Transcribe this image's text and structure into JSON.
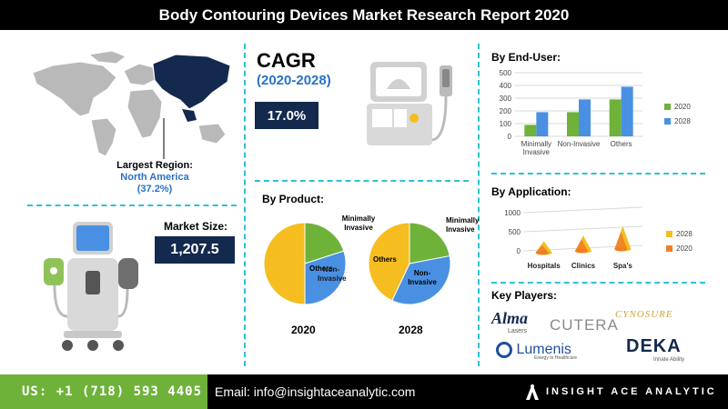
{
  "title": "Body Contouring Devices Market Research Report 2020",
  "region": {
    "label": "Largest Region:",
    "name": "North America",
    "share": "(37.2%)"
  },
  "market_size": {
    "label": "Market Size:",
    "value": "1,207.5"
  },
  "cagr": {
    "label": "CAGR",
    "period": "(2020-2028)",
    "value": "17.0%"
  },
  "product_section": {
    "heading": "By Product:",
    "labels": {
      "minimally_invasive_2020": "Minimally Invasive",
      "minimally_invasive_2028": "Minimally Invasive",
      "non_invasive": "Non-Invasive",
      "others": "Others"
    }
  },
  "end_user_section": {
    "heading": "By End-User:"
  },
  "application_section": {
    "heading": "By Application:"
  },
  "key_players": {
    "heading": "Key Players:",
    "alma": "Alma",
    "alma_sub": "Lasers",
    "cutera": "CUTERA",
    "cynosure": "CYNOSURE",
    "lumenis": "Lumenis",
    "lumenis_sub": "Energy to Healthcare",
    "deka": "DEKA",
    "deka_sub": "Innate Ability"
  },
  "footer": {
    "phone": "US: +1 (718) 593 4405",
    "email": "Email: info@insightaceanalytic.com",
    "brand": "INSIGHT ACE ANALYTIC"
  },
  "colors": {
    "navy": "#13294e",
    "blue": "#4a90e2",
    "green": "#6fb23a",
    "gold": "#f5bd1f",
    "orange": "#ef7f27",
    "teal_separator": "#2cc3d2"
  },
  "chart_data": [
    {
      "type": "bar",
      "title": "By End-User:",
      "categories": [
        "Minimally Invasive",
        "Non-Invasive",
        "Others"
      ],
      "series": [
        {
          "name": "2020",
          "values": [
            90,
            190,
            290
          ],
          "color": "#6fb23a"
        },
        {
          "name": "2028",
          "values": [
            190,
            290,
            390
          ],
          "color": "#4a90e2"
        }
      ],
      "ylim": [
        0,
        500
      ],
      "yticks": [
        0,
        100,
        200,
        300,
        400,
        500
      ],
      "grid": true,
      "legend": "right"
    },
    {
      "type": "bar",
      "title": "By Application:",
      "categories": [
        "Hospitals",
        "Clinics",
        "Spa's"
      ],
      "series": [
        {
          "name": "2028",
          "values": [
            300,
            400,
            600
          ],
          "color": "#f5bd1f"
        },
        {
          "name": "2020",
          "values": [
            200,
            300,
            450
          ],
          "color": "#ef7f27"
        }
      ],
      "ylim": [
        0,
        1000
      ],
      "yticks": [
        0,
        500,
        1000
      ],
      "grid": true,
      "legend": "right"
    },
    {
      "type": "pie",
      "title": "2020",
      "slices": [
        {
          "label": "Minimally Invasive",
          "value": 20,
          "color": "#6fb23a"
        },
        {
          "label": "Non-Invasive",
          "value": 30,
          "color": "#4a90e2"
        },
        {
          "label": "Others",
          "value": 50,
          "color": "#f5bd1f"
        }
      ]
    },
    {
      "type": "pie",
      "title": "2028",
      "slices": [
        {
          "label": "Minimally Invasive",
          "value": 22,
          "color": "#6fb23a"
        },
        {
          "label": "Non-Invasive",
          "value": 35,
          "color": "#4a90e2"
        },
        {
          "label": "Others",
          "value": 43,
          "color": "#f5bd1f"
        }
      ]
    }
  ]
}
